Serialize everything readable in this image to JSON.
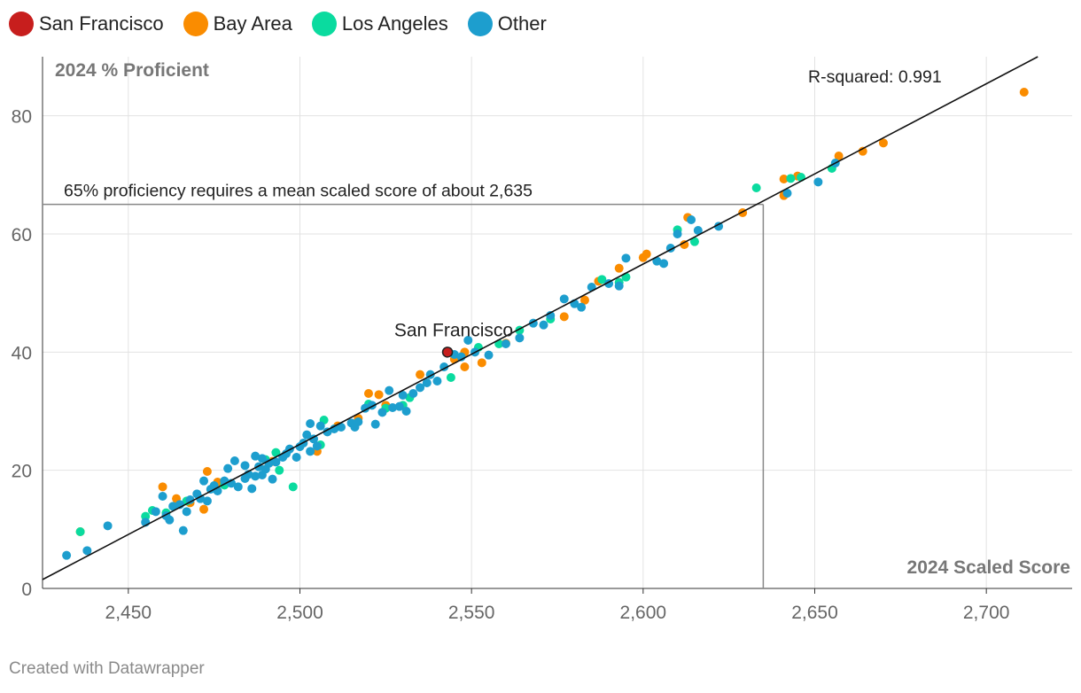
{
  "chart_data": {
    "type": "scatter",
    "title": "",
    "xlabel": "2024 Scaled Score",
    "ylabel": "2024 % Proficient",
    "xlim": [
      2425,
      2725
    ],
    "ylim": [
      0,
      90
    ],
    "xticks": [
      2450,
      2500,
      2550,
      2600,
      2650,
      2700
    ],
    "xtick_labels": [
      "2,450",
      "2,500",
      "2,550",
      "2,600",
      "2,650",
      "2,700"
    ],
    "yticks": [
      0,
      20,
      40,
      60,
      80
    ],
    "ytick_labels": [
      "0",
      "20",
      "40",
      "60",
      "80"
    ],
    "grid": true,
    "legend_position": "top-left",
    "series": [
      {
        "name": "San Francisco",
        "color": "#c71e1d",
        "points": [
          [
            2543,
            40
          ]
        ]
      },
      {
        "name": "Bay Area",
        "color": "#fa8c00",
        "points": [
          [
            2436,
            9.6
          ],
          [
            2460,
            17.2
          ],
          [
            2464,
            15.2
          ],
          [
            2468,
            14.5
          ],
          [
            2472,
            13.4
          ],
          [
            2473,
            19.8
          ],
          [
            2476,
            18.0
          ],
          [
            2492,
            21.5
          ],
          [
            2505,
            23.2
          ],
          [
            2511,
            27.5
          ],
          [
            2517,
            28.8
          ],
          [
            2520,
            33.0
          ],
          [
            2523,
            32.8
          ],
          [
            2525,
            31.0
          ],
          [
            2535,
            36.2
          ],
          [
            2545,
            38.8
          ],
          [
            2548,
            37.5
          ],
          [
            2548,
            40.0
          ],
          [
            2553,
            38.2
          ],
          [
            2560,
            41.5
          ],
          [
            2577,
            46.0
          ],
          [
            2583,
            48.8
          ],
          [
            2587,
            52.0
          ],
          [
            2593,
            54.2
          ],
          [
            2600,
            56.0
          ],
          [
            2601,
            56.6
          ],
          [
            2612,
            58.2
          ],
          [
            2613,
            62.8
          ],
          [
            2629,
            63.6
          ],
          [
            2641,
            66.5
          ],
          [
            2641,
            69.3
          ],
          [
            2645,
            69.8
          ],
          [
            2657,
            73.2
          ],
          [
            2664,
            74.0
          ],
          [
            2670,
            75.4
          ],
          [
            2711,
            84.0
          ]
        ]
      },
      {
        "name": "Los Angeles",
        "color": "#0adb9f",
        "points": [
          [
            2436,
            9.6
          ],
          [
            2455,
            12.2
          ],
          [
            2457,
            13.2
          ],
          [
            2461,
            12.8
          ],
          [
            2467,
            14.8
          ],
          [
            2478,
            17.5
          ],
          [
            2490,
            21.8
          ],
          [
            2493,
            23.0
          ],
          [
            2494,
            20.0
          ],
          [
            2498,
            17.2
          ],
          [
            2506,
            24.3
          ],
          [
            2507,
            28.5
          ],
          [
            2520,
            31.2
          ],
          [
            2525,
            30.5
          ],
          [
            2530,
            31.0
          ],
          [
            2532,
            32.3
          ],
          [
            2544,
            35.7
          ],
          [
            2552,
            40.8
          ],
          [
            2558,
            41.4
          ],
          [
            2564,
            43.7
          ],
          [
            2573,
            45.6
          ],
          [
            2588,
            52.3
          ],
          [
            2593,
            51.8
          ],
          [
            2595,
            52.7
          ],
          [
            2610,
            60.7
          ],
          [
            2615,
            58.7
          ],
          [
            2633,
            67.8
          ],
          [
            2643,
            69.4
          ],
          [
            2646,
            69.6
          ],
          [
            2655,
            71.1
          ]
        ]
      },
      {
        "name": "Other",
        "color": "#1d9ece",
        "points": [
          [
            2432,
            5.6
          ],
          [
            2438,
            6.4
          ],
          [
            2444,
            10.6
          ],
          [
            2455,
            11.2
          ],
          [
            2458,
            13.0
          ],
          [
            2460,
            15.6
          ],
          [
            2461,
            12.3
          ],
          [
            2462,
            11.6
          ],
          [
            2463,
            13.9
          ],
          [
            2465,
            14.2
          ],
          [
            2466,
            9.8
          ],
          [
            2467,
            13.0
          ],
          [
            2468,
            15.0
          ],
          [
            2470,
            16.0
          ],
          [
            2471,
            15.2
          ],
          [
            2472,
            18.2
          ],
          [
            2473,
            14.8
          ],
          [
            2474,
            16.8
          ],
          [
            2475,
            17.4
          ],
          [
            2476,
            16.5
          ],
          [
            2478,
            18.2
          ],
          [
            2479,
            20.3
          ],
          [
            2480,
            17.8
          ],
          [
            2481,
            21.6
          ],
          [
            2482,
            17.2
          ],
          [
            2484,
            18.6
          ],
          [
            2484,
            20.8
          ],
          [
            2485,
            19.3
          ],
          [
            2486,
            16.9
          ],
          [
            2487,
            22.4
          ],
          [
            2487,
            19.0
          ],
          [
            2488,
            20.6
          ],
          [
            2489,
            22.0
          ],
          [
            2489,
            19.2
          ],
          [
            2490,
            20.2
          ],
          [
            2491,
            21.2
          ],
          [
            2492,
            18.5
          ],
          [
            2493,
            21.4
          ],
          [
            2495,
            22.2
          ],
          [
            2496,
            22.8
          ],
          [
            2497,
            23.6
          ],
          [
            2499,
            22.2
          ],
          [
            2500,
            24.0
          ],
          [
            2501,
            24.6
          ],
          [
            2502,
            26.0
          ],
          [
            2503,
            23.2
          ],
          [
            2503,
            27.9
          ],
          [
            2504,
            25.3
          ],
          [
            2505,
            24.1
          ],
          [
            2506,
            27.5
          ],
          [
            2508,
            26.5
          ],
          [
            2510,
            27.0
          ],
          [
            2512,
            27.3
          ],
          [
            2515,
            28.0
          ],
          [
            2516,
            27.3
          ],
          [
            2517,
            28.2
          ],
          [
            2519,
            30.5
          ],
          [
            2521,
            31.0
          ],
          [
            2522,
            27.8
          ],
          [
            2524,
            29.8
          ],
          [
            2526,
            33.5
          ],
          [
            2527,
            30.6
          ],
          [
            2529,
            30.8
          ],
          [
            2530,
            32.7
          ],
          [
            2531,
            30.0
          ],
          [
            2533,
            33.0
          ],
          [
            2535,
            34.0
          ],
          [
            2537,
            34.8
          ],
          [
            2538,
            36.2
          ],
          [
            2540,
            35.1
          ],
          [
            2542,
            37.5
          ],
          [
            2545,
            39.6
          ],
          [
            2547,
            39.2
          ],
          [
            2549,
            42.0
          ],
          [
            2551,
            40.0
          ],
          [
            2555,
            39.5
          ],
          [
            2560,
            41.4
          ],
          [
            2564,
            42.4
          ],
          [
            2568,
            44.9
          ],
          [
            2571,
            44.6
          ],
          [
            2573,
            46.2
          ],
          [
            2577,
            49.0
          ],
          [
            2580,
            48.2
          ],
          [
            2582,
            47.6
          ],
          [
            2585,
            51.0
          ],
          [
            2590,
            51.6
          ],
          [
            2593,
            51.2
          ],
          [
            2595,
            55.9
          ],
          [
            2604,
            55.4
          ],
          [
            2606,
            55.0
          ],
          [
            2608,
            57.6
          ],
          [
            2610,
            60.0
          ],
          [
            2614,
            62.4
          ],
          [
            2616,
            60.6
          ],
          [
            2622,
            61.3
          ],
          [
            2642,
            66.9
          ],
          [
            2651,
            68.8
          ],
          [
            2656,
            72.0
          ]
        ]
      }
    ],
    "trendline": {
      "x0": 2425,
      "y0": 1.5,
      "x1": 2715,
      "y1": 90
    },
    "reference": {
      "x": 2635,
      "y": 65
    },
    "annotations": {
      "r_squared": "R-squared: 0.991",
      "threshold": "65% proficiency requires a mean scaled score of about 2,635",
      "highlight": "San Francisco"
    }
  },
  "footer": "Created with Datawrapper"
}
